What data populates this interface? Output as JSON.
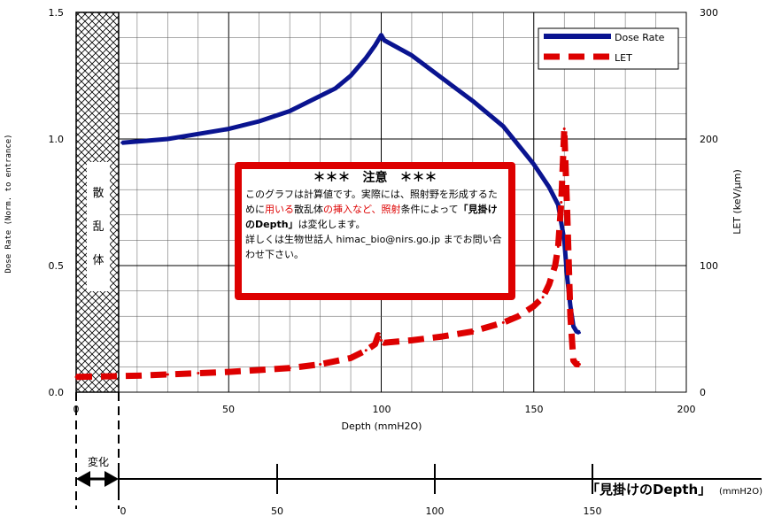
{
  "chart_data": {
    "type": "line",
    "xlabel": "Depth (mmH2O)",
    "ylabel_left": "Dose Rate (Norm. to entrance)",
    "ylabel_right": "LET (keV/μm)",
    "xlim": [
      0,
      200
    ],
    "ylim_left": [
      0,
      1.5
    ],
    "ylim_right": [
      0,
      300
    ],
    "grid": true,
    "x_ticks": [
      "0",
      "50",
      "100",
      "150",
      "200"
    ],
    "y_left_ticks": [
      "0.0",
      "0.5",
      "1.0",
      "1.5"
    ],
    "y_right_ticks": [
      "0",
      "100",
      "200",
      "300"
    ],
    "legend_position": "top-right",
    "colors": {
      "dose": "#0a1490",
      "let": "#dd0000"
    },
    "series": [
      {
        "name": "Dose Rate",
        "axis": "left",
        "x": [
          15,
          20,
          30,
          40,
          50,
          60,
          70,
          80,
          85,
          90,
          95,
          98,
          100,
          101,
          110,
          120,
          130,
          140,
          150,
          155,
          158,
          160,
          161,
          162,
          163,
          164,
          165
        ],
        "values": [
          0.985,
          0.99,
          1.0,
          1.02,
          1.04,
          1.07,
          1.11,
          1.17,
          1.2,
          1.25,
          1.32,
          1.37,
          1.41,
          1.39,
          1.33,
          1.24,
          1.15,
          1.05,
          0.9,
          0.81,
          0.74,
          0.6,
          0.45,
          0.34,
          0.26,
          0.24,
          0.235
        ]
      },
      {
        "name": "LET",
        "axis": "right",
        "x": [
          0,
          10,
          20,
          30,
          40,
          50,
          60,
          70,
          80,
          90,
          95,
          98,
          99,
          100,
          101,
          110,
          120,
          130,
          140,
          145,
          150,
          153,
          155,
          157,
          158,
          159,
          160,
          161,
          162,
          163,
          164,
          165
        ],
        "values": [
          12,
          12.5,
          13,
          14,
          15,
          16,
          17.5,
          19,
          22,
          27,
          33,
          38,
          45,
          41,
          39,
          41,
          44,
          48,
          55,
          60,
          68,
          75,
          85,
          100,
          115,
          150,
          208,
          140,
          60,
          25,
          22,
          22
        ]
      }
    ]
  },
  "shield": {
    "chars": [
      "散",
      "乱",
      "体"
    ]
  },
  "notice": {
    "title": "＊＊＊　注意　＊＊＊",
    "line1": "このグラフは計算値です。実際には、照射野を形成するために",
    "red1": "用いる",
    "mid1": "散乱体",
    "red2": "の挿入など、照射",
    "mid2": "条件によって",
    "bold1": "「見掛けのDepth」",
    "end1": "は変化します。",
    "line2": "詳しくは生物世話人 himac_bio@nirs.go.jp までお問い合わせ下さい。"
  },
  "bottom_axis": {
    "ticks": [
      "0",
      "50",
      "100",
      "150"
    ],
    "label": "「見掛けのDepth」",
    "unit": "(mmH2O)",
    "change_label": "変化"
  }
}
